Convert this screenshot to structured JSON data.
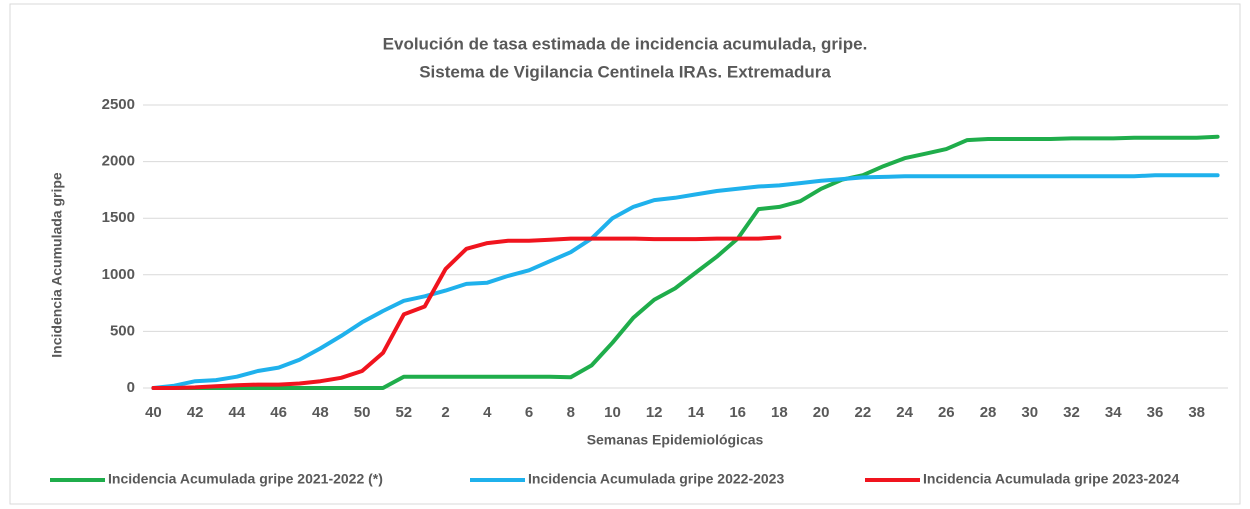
{
  "chart_data": {
    "type": "line",
    "title": "Evolución de tasa estimada de incidencia acumulada, gripe.",
    "subtitle": "Sistema de Vigilancia Centinela IRAs. Extremadura",
    "xlabel": "Semanas Epidemiológicas",
    "ylabel": "Incidencia Acumulada gripe",
    "categories": [
      "40",
      null,
      "42",
      null,
      "44",
      null,
      "46",
      null,
      "48",
      null,
      "50",
      null,
      "52",
      null,
      "2",
      null,
      "4",
      null,
      "6",
      null,
      "8",
      null,
      "10",
      null,
      "12",
      null,
      "14",
      null,
      "16",
      null,
      "18",
      null,
      "20",
      null,
      "22",
      null,
      "24",
      null,
      "26",
      null,
      "28",
      null,
      "30",
      null,
      "32",
      null,
      "34",
      null,
      "36",
      null,
      "38",
      null
    ],
    "ylim": [
      0,
      2500
    ],
    "yticks": [
      0,
      500,
      1000,
      1500,
      2000,
      2500
    ],
    "grid": true,
    "legend": "bottom",
    "series": [
      {
        "name": "Incidencia Acumulada gripe 2021-2022 (*)",
        "color": "#1fad4b",
        "values": [
          0,
          0,
          0,
          0,
          0,
          0,
          0,
          0,
          0,
          0,
          0,
          0,
          100,
          100,
          100,
          100,
          100,
          100,
          100,
          100,
          95,
          200,
          400,
          620,
          780,
          880,
          1020,
          1160,
          1320,
          1580,
          1600,
          1650,
          1760,
          1840,
          1880,
          1960,
          2030,
          2070,
          2110,
          2190,
          2200,
          2200,
          2200,
          2200,
          2205,
          2205,
          2205,
          2210,
          2210,
          2210,
          2210,
          2220
        ]
      },
      {
        "name": "Incidencia Acumulada gripe 2022-2023",
        "color": "#1fb1ec",
        "values": [
          0,
          20,
          60,
          70,
          100,
          150,
          180,
          250,
          350,
          460,
          580,
          680,
          770,
          810,
          860,
          920,
          930,
          990,
          1040,
          1120,
          1200,
          1320,
          1500,
          1600,
          1660,
          1680,
          1710,
          1740,
          1760,
          1780,
          1790,
          1810,
          1830,
          1845,
          1860,
          1865,
          1870,
          1870,
          1870,
          1870,
          1870,
          1870,
          1870,
          1870,
          1870,
          1870,
          1870,
          1870,
          1880,
          1880,
          1880,
          1880
        ]
      },
      {
        "name": "Incidencia Acumulada gripe 2023-2024",
        "color": "#f0141e",
        "values": [
          0,
          0,
          5,
          15,
          25,
          30,
          30,
          40,
          60,
          90,
          150,
          310,
          650,
          720,
          1050,
          1230,
          1280,
          1300,
          1300,
          1310,
          1320,
          1320,
          1320,
          1320,
          1315,
          1315,
          1315,
          1320,
          1320,
          1320,
          1330,
          null,
          null,
          null,
          null,
          null,
          null,
          null,
          null,
          null,
          null,
          null,
          null,
          null,
          null,
          null,
          null,
          null,
          null,
          null,
          null,
          null
        ]
      }
    ]
  }
}
